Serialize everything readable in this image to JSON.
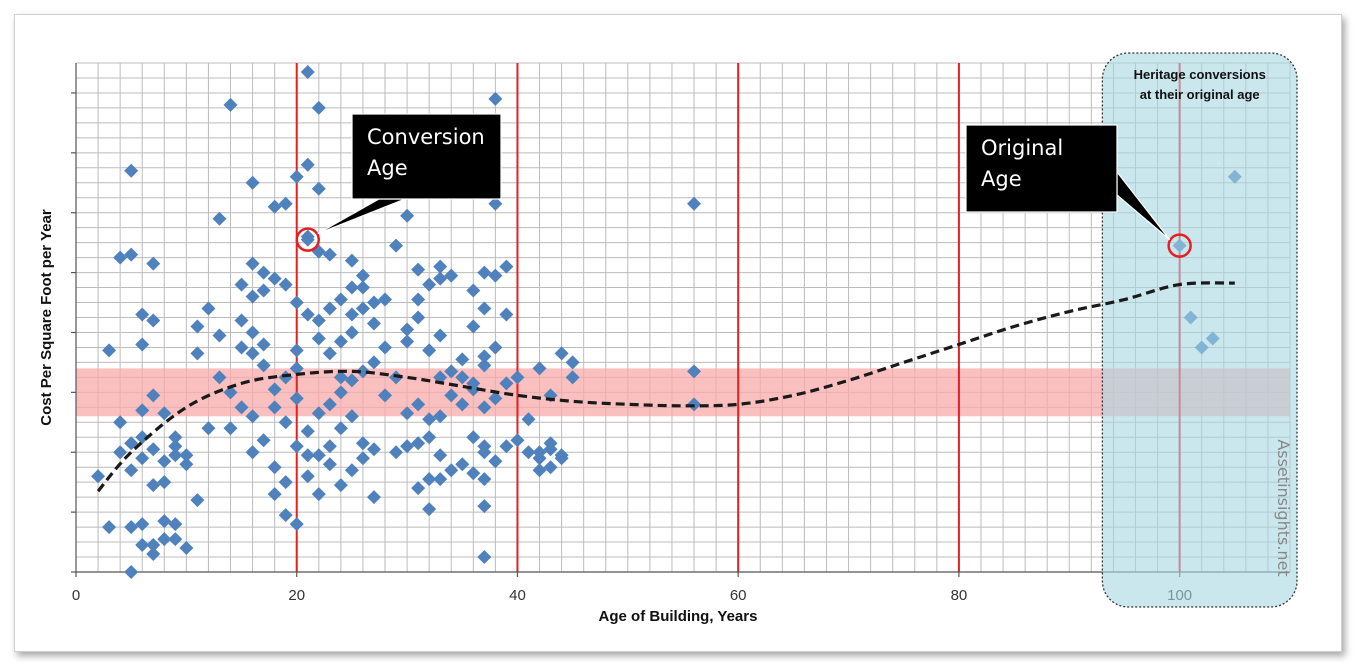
{
  "chart_data": {
    "type": "scatter",
    "xlabel": "Age of Building, Years",
    "ylabel": "Cost Per Square Foot per Year",
    "xlim": [
      0,
      110
    ],
    "ylim": [
      0,
      17
    ],
    "x_ticks": [
      0,
      20,
      40,
      60,
      80,
      100
    ],
    "grid": true,
    "points": [
      [
        5,
        0.0
      ],
      [
        3,
        1.5
      ],
      [
        5,
        1.5
      ],
      [
        6,
        1.6
      ],
      [
        7,
        0.9
      ],
      [
        8,
        1.7
      ],
      [
        6,
        0.9
      ],
      [
        9,
        1.1
      ],
      [
        9,
        1.6
      ],
      [
        10,
        0.8
      ],
      [
        7,
        0.6
      ],
      [
        8,
        1.1
      ],
      [
        2,
        3.2
      ],
      [
        5,
        3.4
      ],
      [
        4,
        4.0
      ],
      [
        6,
        3.8
      ],
      [
        7,
        4.1
      ],
      [
        8,
        3.7
      ],
      [
        9,
        3.9
      ],
      [
        10,
        3.6
      ],
      [
        6,
        4.5
      ],
      [
        7,
        2.9
      ],
      [
        8,
        3.0
      ],
      [
        9,
        4.2
      ],
      [
        10,
        3.9
      ],
      [
        11,
        2.4
      ],
      [
        12,
        4.8
      ],
      [
        5,
        4.3
      ],
      [
        6,
        5.4
      ],
      [
        7,
        5.9
      ],
      [
        8,
        5.3
      ],
      [
        9,
        4.5
      ],
      [
        4,
        5.0
      ],
      [
        3,
        7.4
      ],
      [
        6,
        7.6
      ],
      [
        7,
        8.4
      ],
      [
        6,
        8.6
      ],
      [
        7,
        10.3
      ],
      [
        5,
        10.6
      ],
      [
        4,
        10.5
      ],
      [
        5,
        13.4
      ],
      [
        11,
        8.2
      ],
      [
        11,
        7.3
      ],
      [
        12,
        8.8
      ],
      [
        13,
        6.5
      ],
      [
        13,
        7.9
      ],
      [
        14,
        6.0
      ],
      [
        15,
        7.5
      ],
      [
        16,
        7.3
      ],
      [
        17,
        6.9
      ],
      [
        15,
        8.4
      ],
      [
        16,
        8.0
      ],
      [
        17,
        7.6
      ],
      [
        18,
        6.1
      ],
      [
        19,
        6.5
      ],
      [
        20,
        7.4
      ],
      [
        20,
        6.8
      ],
      [
        16,
        5.2
      ],
      [
        18,
        5.5
      ],
      [
        19,
        5.0
      ],
      [
        20,
        5.8
      ],
      [
        21,
        4.7
      ],
      [
        22,
        5.3
      ],
      [
        23,
        5.6
      ],
      [
        24,
        6.0
      ],
      [
        14,
        4.8
      ],
      [
        15,
        5.5
      ],
      [
        16,
        4.0
      ],
      [
        17,
        4.4
      ],
      [
        18,
        3.5
      ],
      [
        19,
        3.0
      ],
      [
        20,
        4.2
      ],
      [
        21,
        3.9
      ],
      [
        22,
        2.6
      ],
      [
        23,
        4.2
      ],
      [
        24,
        4.8
      ],
      [
        25,
        5.2
      ],
      [
        18,
        2.6
      ],
      [
        19,
        1.9
      ],
      [
        20,
        1.6
      ],
      [
        21,
        3.2
      ],
      [
        22,
        3.9
      ],
      [
        23,
        3.6
      ],
      [
        24,
        2.9
      ],
      [
        25,
        3.4
      ],
      [
        26,
        4.3
      ],
      [
        27,
        2.5
      ],
      [
        26,
        3.8
      ],
      [
        27,
        4.1
      ],
      [
        28,
        5.9
      ],
      [
        29,
        4.0
      ],
      [
        30,
        4.2
      ],
      [
        31,
        4.3
      ],
      [
        32,
        4.5
      ],
      [
        33,
        3.9
      ],
      [
        30,
        5.3
      ],
      [
        31,
        5.6
      ],
      [
        32,
        5.1
      ],
      [
        33,
        5.2
      ],
      [
        34,
        5.9
      ],
      [
        35,
        5.6
      ],
      [
        36,
        4.5
      ],
      [
        37,
        4.0
      ],
      [
        37,
        4.2
      ],
      [
        38,
        3.7
      ],
      [
        39,
        4.2
      ],
      [
        40,
        4.4
      ],
      [
        41,
        5.1
      ],
      [
        36,
        6.1
      ],
      [
        37,
        7.2
      ],
      [
        38,
        7.5
      ],
      [
        39,
        8.6
      ],
      [
        36,
        8.2
      ],
      [
        37,
        8.8
      ],
      [
        35,
        7.1
      ],
      [
        33,
        6.5
      ],
      [
        32,
        3.1
      ],
      [
        31,
        2.8
      ],
      [
        32,
        2.1
      ],
      [
        33,
        3.1
      ],
      [
        34,
        3.4
      ],
      [
        35,
        3.6
      ],
      [
        36,
        3.3
      ],
      [
        37,
        3.1
      ],
      [
        37,
        2.2
      ],
      [
        37,
        0.5
      ],
      [
        42,
        4.0
      ],
      [
        42,
        3.8
      ],
      [
        43,
        4.3
      ],
      [
        43,
        4.1
      ],
      [
        44,
        3.9
      ],
      [
        41,
        4.0
      ],
      [
        42,
        3.4
      ],
      [
        43,
        3.5
      ],
      [
        44,
        3.8
      ],
      [
        40,
        6.5
      ],
      [
        42,
        6.8
      ],
      [
        43,
        5.9
      ],
      [
        44,
        7.3
      ],
      [
        45,
        7.0
      ],
      [
        45,
        6.5
      ],
      [
        38,
        9.9
      ],
      [
        39,
        10.2
      ],
      [
        37,
        10.0
      ],
      [
        36,
        9.4
      ],
      [
        33,
        9.8
      ],
      [
        32,
        9.6
      ],
      [
        31,
        9.1
      ],
      [
        33,
        10.2
      ],
      [
        34,
        9.9
      ],
      [
        31,
        10.1
      ],
      [
        30,
        8.1
      ],
      [
        29,
        10.9
      ],
      [
        28,
        9.1
      ],
      [
        27,
        8.3
      ],
      [
        27,
        9.0
      ],
      [
        26,
        9.5
      ],
      [
        25,
        8.0
      ],
      [
        25,
        8.6
      ],
      [
        26,
        8.8
      ],
      [
        24,
        9.1
      ],
      [
        24,
        7.7
      ],
      [
        25,
        9.5
      ],
      [
        26,
        9.9
      ],
      [
        25,
        10.4
      ],
      [
        23,
        10.6
      ],
      [
        22,
        10.7
      ],
      [
        21,
        11.2
      ],
      [
        22,
        12.8
      ],
      [
        21,
        13.6
      ],
      [
        20,
        13.2
      ],
      [
        19,
        12.3
      ],
      [
        18,
        12.2
      ],
      [
        16,
        13.0
      ],
      [
        13,
        11.8
      ],
      [
        14,
        15.6
      ],
      [
        17,
        10.0
      ],
      [
        16,
        10.3
      ],
      [
        15,
        9.6
      ],
      [
        16,
        9.2
      ],
      [
        17,
        9.4
      ],
      [
        18,
        9.8
      ],
      [
        19,
        9.6
      ],
      [
        20,
        9.0
      ],
      [
        21,
        8.6
      ],
      [
        22,
        8.4
      ],
      [
        23,
        8.8
      ],
      [
        22,
        7.8
      ],
      [
        23,
        7.3
      ],
      [
        24,
        6.5
      ],
      [
        25,
        6.4
      ],
      [
        26,
        6.7
      ],
      [
        27,
        7.0
      ],
      [
        28,
        7.5
      ],
      [
        29,
        6.5
      ],
      [
        30,
        7.7
      ],
      [
        31,
        8.5
      ],
      [
        32,
        7.4
      ],
      [
        33,
        7.9
      ],
      [
        34,
        6.7
      ],
      [
        35,
        6.5
      ],
      [
        36,
        6.3
      ],
      [
        37,
        6.9
      ],
      [
        38,
        5.8
      ],
      [
        37,
        5.5
      ],
      [
        39,
        6.3
      ],
      [
        21,
        16.7
      ],
      [
        22,
        15.5
      ],
      [
        38,
        15.8
      ],
      [
        30,
        11.9
      ],
      [
        38,
        12.3
      ],
      [
        56,
        12.3
      ],
      [
        56,
        6.7
      ],
      [
        56,
        5.6
      ],
      [
        21,
        11.1
      ],
      [
        100,
        10.9
      ],
      [
        105,
        13.2
      ],
      [
        101,
        8.5
      ],
      [
        103,
        7.8
      ],
      [
        102,
        7.5
      ]
    ],
    "highlighted_points": [
      {
        "x": 21,
        "y": 11.1,
        "label": "Conversion Age"
      },
      {
        "x": 100,
        "y": 10.9,
        "label": "Original Age"
      }
    ],
    "trend_line": {
      "style": "dashed",
      "points": [
        [
          2,
          2.7
        ],
        [
          5,
          4.0
        ],
        [
          10,
          5.5
        ],
        [
          15,
          6.3
        ],
        [
          20,
          6.6
        ],
        [
          25,
          6.7
        ],
        [
          30,
          6.5
        ],
        [
          35,
          6.2
        ],
        [
          40,
          5.9
        ],
        [
          45,
          5.7
        ],
        [
          50,
          5.6
        ],
        [
          55,
          5.55
        ],
        [
          60,
          5.6
        ],
        [
          65,
          5.9
        ],
        [
          70,
          6.4
        ],
        [
          75,
          7.0
        ],
        [
          80,
          7.6
        ],
        [
          85,
          8.2
        ],
        [
          90,
          8.7
        ],
        [
          95,
          9.1
        ],
        [
          100,
          9.6
        ],
        [
          105,
          9.65
        ]
      ]
    },
    "vertical_reference_lines": [
      20,
      40,
      60,
      80,
      100
    ],
    "band": {
      "y_range": [
        5.2,
        6.8
      ],
      "color": "#f8a9a9"
    },
    "shaded_region": {
      "x_range": [
        93,
        111
      ],
      "label_lines": [
        "Heritage conversions",
        "at their original age"
      ]
    },
    "annotations": [
      {
        "lines": [
          "Conversion",
          "Age"
        ]
      },
      {
        "lines": [
          "Original",
          "Age"
        ]
      }
    ],
    "watermark": "Assetinsights.net",
    "colors": {
      "marker": "#4f81bd",
      "reference_line": "#e52020",
      "highlight_circle": "#e52020",
      "band": "#f8a9a9",
      "region": "#a9d7e3",
      "callout": "#000000"
    }
  }
}
